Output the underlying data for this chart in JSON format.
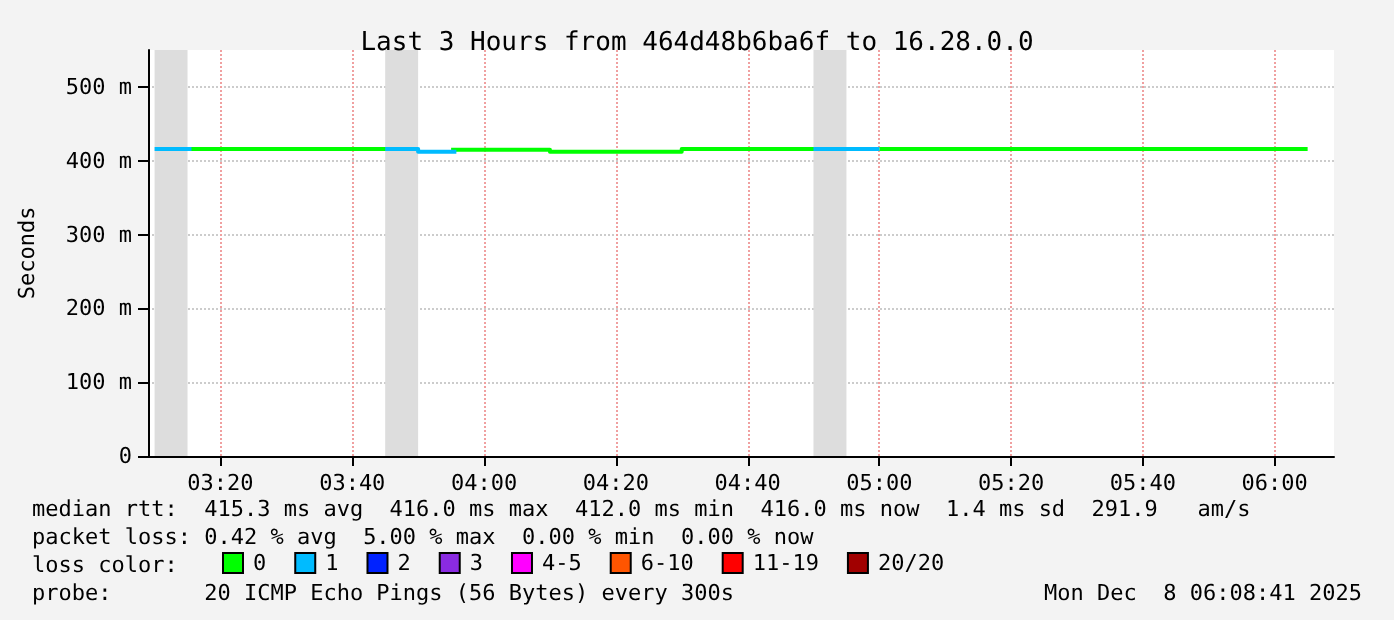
{
  "chart_data": {
    "type": "step",
    "title": "Last 3 Hours from 464d48b6ba6f to 16.28.0.0",
    "ylabel": "Seconds",
    "legend_title": "loss color:",
    "xlim": [
      3.15,
      6.15
    ],
    "xticks": [
      {
        "value": 3.3333,
        "label": "03:20"
      },
      {
        "value": 3.6667,
        "label": "03:40"
      },
      {
        "value": 4,
        "label": "04:00"
      },
      {
        "value": 4.3333,
        "label": "04:20"
      },
      {
        "value": 4.6667,
        "label": "04:40"
      },
      {
        "value": 5,
        "label": "05:00"
      },
      {
        "value": 5.3333,
        "label": "05:20"
      },
      {
        "value": 5.6667,
        "label": "05:40"
      },
      {
        "value": 6,
        "label": "06:00"
      }
    ],
    "ylim": [
      0,
      550
    ],
    "yticks": [
      {
        "value": 0,
        "label": "0"
      },
      {
        "value": 100,
        "label": "100 m"
      },
      {
        "value": 200,
        "label": "200 m"
      },
      {
        "value": 300,
        "label": "300 m"
      },
      {
        "value": 400,
        "label": "400 m"
      },
      {
        "value": 500,
        "label": "500 m"
      }
    ],
    "grid": true,
    "legend": "bottom",
    "marker": "none",
    "line_style": "solid",
    "bands": [
      {
        "axis": "x",
        "from": 3.1667,
        "to": 3.25,
        "color": "#dddddd"
      },
      {
        "axis": "x",
        "from": 3.75,
        "to": 3.8333,
        "color": "#dddddd"
      },
      {
        "axis": "x",
        "from": 4.8333,
        "to": 4.9167,
        "color": "#dddddd"
      }
    ],
    "series": [
      {
        "name": "0",
        "color": "#00ff00",
        "x": [
          3.25,
          3.75,
          3.76,
          3.9167,
          4.1667,
          4.5,
          4.8333,
          4.84,
          5.0,
          6.0833
        ],
        "values": [
          416,
          416,
          null,
          415,
          412,
          416,
          416,
          null,
          416,
          416
        ]
      },
      {
        "name": "1",
        "color": "#00bbff",
        "x": [
          3.1667,
          3.25,
          3.26,
          3.75,
          3.8333,
          3.9167,
          3.93,
          4.8333,
          5.0
        ],
        "values": [
          416,
          416,
          null,
          416,
          412,
          412,
          null,
          416,
          416
        ]
      },
      {
        "name": "2",
        "color": "#0022ff"
      },
      {
        "name": "3",
        "color": "#8a2be2"
      },
      {
        "name": "4-5",
        "color": "#ff00ff"
      },
      {
        "name": "6-10",
        "color": "#ff5500"
      },
      {
        "name": "11-19",
        "color": "#ff0000"
      },
      {
        "name": "20/20",
        "color": "#a10000"
      }
    ],
    "annotations": [
      "median rtt:  415.3 ms avg  416.0 ms max  412.0 ms min  416.0 ms now  1.4 ms sd  291.9   am/s",
      "packet loss: 0.42 % avg  5.00 % max  0.00 % min  0.00 % now",
      "probe:       20 ICMP Echo Pings (56 Bytes) every 300s",
      "Mon Dec  8 06:08:41 2025"
    ]
  }
}
